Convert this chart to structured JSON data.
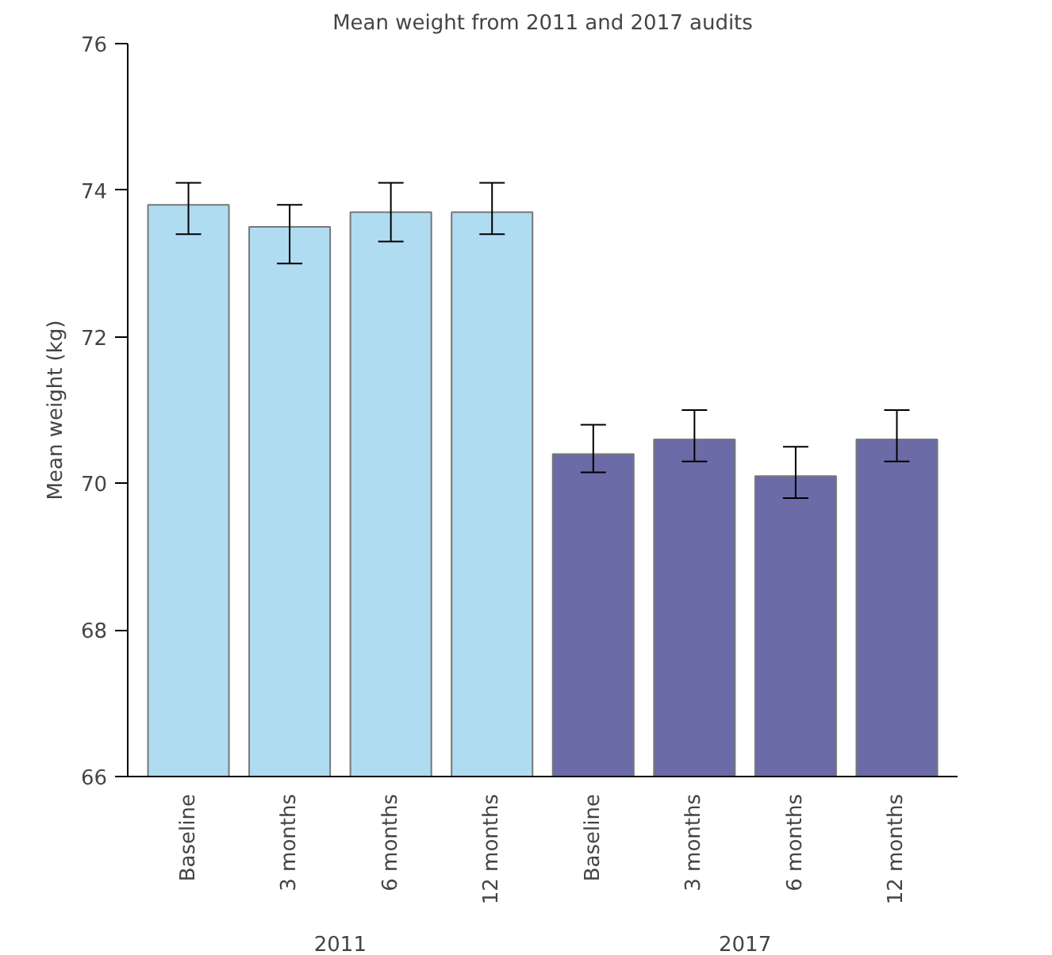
{
  "chart_data": {
    "type": "bar",
    "title": "Mean weight from 2011 and 2017 audits",
    "ylabel": "Mean weight (kg)",
    "categories": [
      "Baseline",
      "3 months",
      "6 months",
      "12 months",
      "Baseline",
      "3 months",
      "6 months",
      "12 months"
    ],
    "values": [
      73.8,
      73.5,
      73.7,
      73.7,
      70.4,
      70.6,
      70.1,
      70.6
    ],
    "errors": [
      [
        73.4,
        74.1
      ],
      [
        73.0,
        73.8
      ],
      [
        73.3,
        74.1
      ],
      [
        73.4,
        74.1
      ],
      [
        70.15,
        70.8
      ],
      [
        70.3,
        71.0
      ],
      [
        69.8,
        70.5
      ],
      [
        70.3,
        71.0
      ]
    ],
    "colors": [
      "#b0dcf2",
      "#b0dcf2",
      "#b0dcf2",
      "#b0dcf2",
      "#6b6ba8",
      "#6b6ba8",
      "#6b6ba8",
      "#6b6ba8"
    ],
    "annotations": [
      "2011",
      "2017"
    ],
    "ylim": [
      66,
      76
    ],
    "yticks": [
      66,
      68,
      70,
      72,
      74,
      76
    ],
    "grid": false
  }
}
